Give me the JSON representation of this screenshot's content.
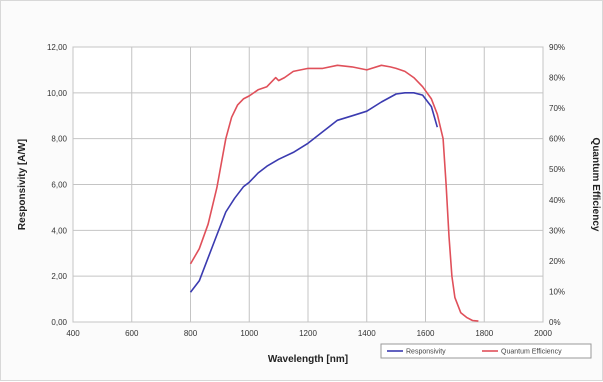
{
  "chart_data": {
    "type": "line",
    "xlabel": "Wavelength [nm]",
    "ylabel": "Responsivity [A/W]",
    "y2label": "Quantum Efficiency",
    "xlim": [
      400,
      2000
    ],
    "ylim": [
      0,
      12
    ],
    "y2lim": [
      0,
      90
    ],
    "x_ticks": [
      "400",
      "600",
      "800",
      "1000",
      "1200",
      "1400",
      "1600",
      "1800",
      "2000"
    ],
    "y_ticks": [
      "0,00",
      "2,00",
      "4,00",
      "6,00",
      "8,00",
      "10,00",
      "12,00"
    ],
    "y2_ticks": [
      "0%",
      "10%",
      "20%",
      "30%",
      "40%",
      "50%",
      "60%",
      "70%",
      "80%",
      "90%"
    ],
    "grid": true,
    "legend_position": "bottom-right",
    "series": [
      {
        "name": "Responsivity",
        "axis": "left",
        "color": "#3b3bb0",
        "x": [
          800,
          830,
          860,
          890,
          920,
          950,
          980,
          1000,
          1030,
          1060,
          1100,
          1150,
          1200,
          1250,
          1300,
          1350,
          1400,
          1450,
          1500,
          1530,
          1560,
          1590,
          1620,
          1640
        ],
        "y": [
          1.3,
          1.8,
          2.8,
          3.8,
          4.8,
          5.4,
          5.9,
          6.1,
          6.5,
          6.8,
          7.1,
          7.4,
          7.8,
          8.3,
          8.8,
          9.0,
          9.2,
          9.6,
          9.95,
          10.0,
          10.0,
          9.9,
          9.4,
          8.5
        ]
      },
      {
        "name": "Quantum Efficiency",
        "axis": "right",
        "color": "#e0505a",
        "x": [
          800,
          830,
          860,
          890,
          920,
          940,
          960,
          980,
          1000,
          1030,
          1060,
          1090,
          1100,
          1120,
          1150,
          1200,
          1250,
          1300,
          1350,
          1400,
          1450,
          1480,
          1500,
          1530,
          1560,
          1590,
          1620,
          1640,
          1660,
          1670,
          1680,
          1690,
          1700,
          1720,
          1740,
          1760,
          1780
        ],
        "y": [
          19,
          24,
          32,
          44,
          60,
          67,
          71,
          73,
          74,
          76,
          77,
          80,
          79,
          80,
          82,
          83,
          83,
          84,
          83.5,
          82.5,
          84,
          83.5,
          83,
          82,
          80,
          77,
          73,
          68,
          60,
          45,
          28,
          15,
          8,
          3,
          1.5,
          0.5,
          0.3
        ]
      }
    ]
  }
}
